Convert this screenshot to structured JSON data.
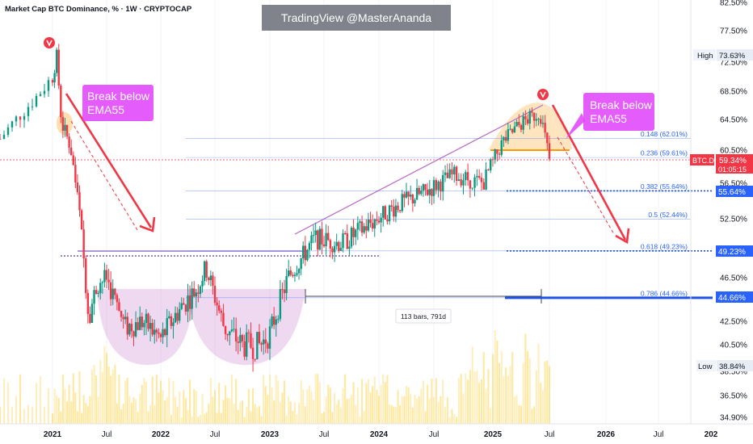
{
  "header": {
    "symbol_title": "Market Cap BTC Dominance, % · 1W · CRYPTOCAP"
  },
  "watermark": "TradingView @MasterAnanda",
  "annotations": {
    "left_note": [
      "Break below",
      "EMA55"
    ],
    "right_note": [
      "Break below",
      "EMA55"
    ],
    "measure": "113 bars, 791d"
  },
  "price_axis": {
    "labels": [
      "82.50%",
      "77.50%",
      "72.50%",
      "68.50%",
      "64.50%",
      "60.50%",
      "56.50%",
      "52.50%",
      "46.50%",
      "42.50%",
      "40.50%",
      "38.50%",
      "36.50%",
      "34.90%"
    ],
    "badges": {
      "high_label": "High",
      "high_value": "73.63%",
      "last_symbol": "BTC.D",
      "last_value": "59.34%",
      "countdown": "01:05:15",
      "level1": "55.64%",
      "level2": "49.23%",
      "level3": "44.66%",
      "low_label": "Low",
      "low_value": "38.84%"
    }
  },
  "time_axis": {
    "labels": [
      "2021",
      "Jul",
      "2022",
      "Jul",
      "2023",
      "Jul",
      "2024",
      "Jul",
      "2025",
      "Jul",
      "2026",
      "Jul",
      "202"
    ]
  },
  "fib_levels": [
    {
      "ratio": "0.148 (62.01%)",
      "value": 62.01
    },
    {
      "ratio": "0.236 (59.61%)",
      "value": 59.61
    },
    {
      "ratio": "0.382 (55.64%)",
      "value": 55.64
    },
    {
      "ratio": "0.5 (52.44%)",
      "value": 52.44
    },
    {
      "ratio": "0.618 (49.23%)",
      "value": 49.23
    },
    {
      "ratio": "0.786 (44.66%)",
      "value": 44.66
    }
  ],
  "colors": {
    "up": "#089981",
    "down": "#f23645",
    "accent": "#e040fb",
    "fib": "#2962ff",
    "badge_blue": "#2962ff",
    "badge_red": "#f23645"
  },
  "chart_data": {
    "type": "candlestick",
    "title": "Market Cap BTC Dominance, % · 1W · CRYPTOCAP",
    "series_weekly_close": [
      {
        "date": "2020-10",
        "value": 62.0
      },
      {
        "date": "2020-12",
        "value": 67.5
      },
      {
        "date": "2021-01",
        "value": 70.5
      },
      {
        "date": "2021-01-15",
        "value": 73.5
      },
      {
        "date": "2021-02",
        "value": 64.0
      },
      {
        "date": "2021-03",
        "value": 61.0
      },
      {
        "date": "2021-04",
        "value": 53.0
      },
      {
        "date": "2021-05",
        "value": 43.0
      },
      {
        "date": "2021-06",
        "value": 46.0
      },
      {
        "date": "2021-07",
        "value": 46.5
      },
      {
        "date": "2021-09",
        "value": 42.0
      },
      {
        "date": "2021-11",
        "value": 42.5
      },
      {
        "date": "2022-01",
        "value": 41.0
      },
      {
        "date": "2022-03",
        "value": 43.5
      },
      {
        "date": "2022-05",
        "value": 45.5
      },
      {
        "date": "2022-06",
        "value": 47.5
      },
      {
        "date": "2022-08",
        "value": 42.0
      },
      {
        "date": "2022-10",
        "value": 40.5
      },
      {
        "date": "2022-12",
        "value": 40.5
      },
      {
        "date": "2023-01",
        "value": 41.5
      },
      {
        "date": "2023-03",
        "value": 46.5
      },
      {
        "date": "2023-06",
        "value": 50.5
      },
      {
        "date": "2023-09",
        "value": 50.0
      },
      {
        "date": "2023-12",
        "value": 52.0
      },
      {
        "date": "2024-03",
        "value": 54.0
      },
      {
        "date": "2024-06",
        "value": 55.5
      },
      {
        "date": "2024-09",
        "value": 57.5
      },
      {
        "date": "2024-12",
        "value": 56.5
      },
      {
        "date": "2025-02",
        "value": 61.5
      },
      {
        "date": "2025-04",
        "value": 64.0
      },
      {
        "date": "2025-06",
        "value": 65.5
      },
      {
        "date": "2025-07",
        "value": 59.34
      }
    ],
    "ylim": [
      34.9,
      84.0
    ],
    "last_value": 59.34
  }
}
